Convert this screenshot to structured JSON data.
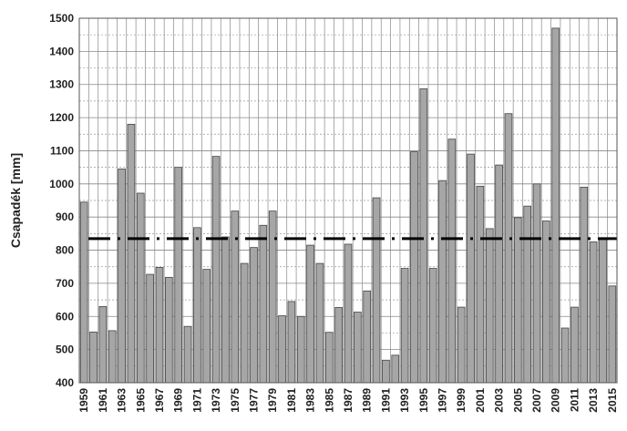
{
  "chart_data": {
    "type": "bar",
    "y_label": "Csapadék [mm]",
    "categories": [
      "1959",
      null,
      "1961",
      null,
      "1963",
      null,
      "1965",
      null,
      "1967",
      null,
      "1969",
      null,
      "1971",
      null,
      "1973",
      null,
      "1975",
      null,
      "1977",
      null,
      "1979",
      null,
      "1981",
      null,
      "1983",
      null,
      "1985",
      null,
      "1987",
      null,
      "1989",
      null,
      "1991",
      null,
      "1993",
      null,
      "1995",
      null,
      "1997",
      null,
      "1999",
      null,
      "2001",
      null,
      "2003",
      null,
      "2005",
      null,
      "2007",
      null,
      "2009",
      null,
      "2011",
      null,
      "2013",
      null,
      "2015"
    ],
    "values": [
      945,
      553,
      630,
      557,
      1045,
      1180,
      972,
      727,
      748,
      718,
      1050,
      570,
      868,
      742,
      1083,
      840,
      918,
      760,
      808,
      875,
      918,
      602,
      645,
      600,
      815,
      760,
      552,
      627,
      818,
      613,
      677,
      958,
      468,
      483,
      745,
      1097,
      1287,
      745,
      1010,
      1135,
      628,
      1090,
      993,
      865,
      1057,
      1212,
      898,
      933,
      1000,
      888,
      1470,
      565,
      628,
      990,
      825,
      835,
      692
    ],
    "color": "#a6a6a6",
    "mean": 835,
    "ylim": [
      400,
      1500
    ],
    "yticks": [
      400,
      500,
      600,
      700,
      800,
      900,
      1000,
      1100,
      1200,
      1300,
      1400,
      1500
    ],
    "grid": true
  }
}
